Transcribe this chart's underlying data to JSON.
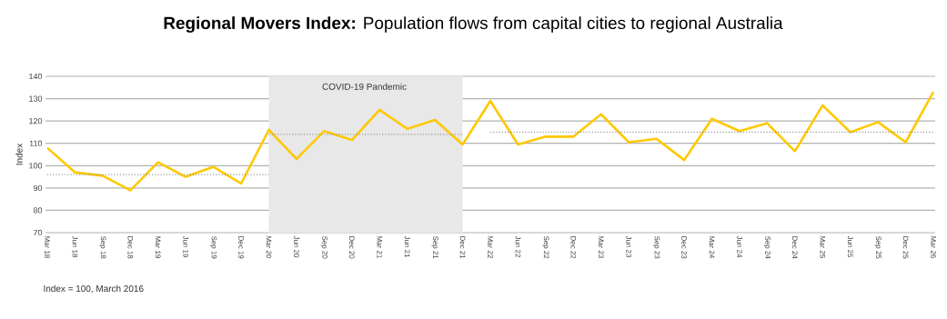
{
  "chart_data": {
    "type": "line",
    "title": "**Regional Movers Index:** Population flows from capital cities to regional Australia",
    "ylabel": "Index",
    "annotations": [
      "Index = 100, March 2016"
    ],
    "categories": [
      "Mar 18",
      "Jun 18",
      "Sep 18",
      "Dec 18",
      "Mar 19",
      "Jun 19",
      "Sep 19",
      "Dec 19",
      "Mar 20",
      "Jun 20",
      "Sep 20",
      "Dec 20",
      "Mar 21",
      "Jun 21",
      "Sep 21",
      "Dec 21",
      "Mar 22",
      "Jun 22",
      "Sep 22",
      "Dec 22",
      "Mar 23",
      "Jun 23",
      "Sep 23",
      "Dec 23",
      "Mar 24",
      "Jun 24",
      "Sep 24",
      "Dec 24",
      "Mar 25",
      "Jun 25",
      "Sep 25",
      "Dec 25",
      "Mar 26"
    ],
    "series": [
      {
        "color": "#ffc800",
        "values": [
          108,
          97,
          95.5,
          89,
          101.5,
          95,
          99.5,
          92,
          116,
          103,
          115.5,
          111.5,
          125,
          116.5,
          120.5,
          109.5,
          129,
          109.5,
          113,
          113,
          123,
          110.5,
          112,
          102.5,
          121,
          115.5,
          119,
          106.5,
          127,
          115,
          119.5,
          110.5,
          133
        ]
      },
      {
        "color": "#999999",
        "line_style": "dotted",
        "values": [
          96,
          96,
          96,
          96,
          96,
          96,
          96,
          96,
          96,
          null,
          null,
          null,
          null,
          null,
          null,
          null,
          null,
          null,
          null,
          null,
          null,
          null,
          null,
          null,
          null,
          null,
          null,
          null,
          null,
          null,
          null,
          null,
          null
        ]
      },
      {
        "color": "#999999",
        "line_style": "dotted",
        "values": [
          null,
          null,
          null,
          null,
          null,
          null,
          null,
          null,
          114,
          114,
          114,
          114,
          114,
          114,
          114,
          114,
          null,
          null,
          null,
          null,
          null,
          null,
          null,
          null,
          null,
          null,
          null,
          null,
          null,
          null,
          null,
          null,
          null
        ]
      },
      {
        "color": "#999999",
        "line_style": "dotted",
        "values": [
          null,
          null,
          null,
          null,
          null,
          null,
          null,
          null,
          null,
          null,
          null,
          null,
          null,
          null,
          null,
          null,
          115,
          115,
          115,
          115,
          115,
          115,
          115,
          115,
          115,
          115,
          115,
          115,
          115,
          115,
          115,
          115,
          115
        ]
      }
    ],
    "bands": [
      {
        "axis": "x",
        "from": "Mar 20",
        "to": "Dec 21",
        "label": "COVID-19 Pandemic",
        "color": "#e8e8e8"
      }
    ],
    "ylim": [
      70,
      140
    ],
    "yticks": [
      70,
      80,
      90,
      100,
      110,
      120,
      130,
      140
    ],
    "grid": "y",
    "marker": "none",
    "line_style": "solid"
  }
}
